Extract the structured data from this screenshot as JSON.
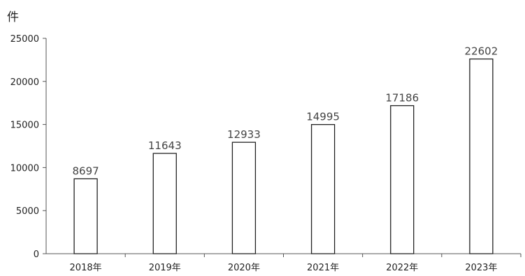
{
  "chart_data": {
    "type": "bar",
    "title": "",
    "xlabel": "",
    "ylabel": "件",
    "categories": [
      "2018年",
      "2019年",
      "2020年",
      "2021年",
      "2022年",
      "2023年"
    ],
    "values": [
      8697,
      11643,
      12933,
      14995,
      17186,
      22602
    ],
    "data_labels": [
      "8697",
      "11643",
      "12933",
      "14995",
      "17186",
      "22602"
    ],
    "ylim": [
      0,
      25000
    ],
    "yticks": [
      0,
      5000,
      10000,
      15000,
      20000,
      25000
    ],
    "ytick_labels": [
      "0",
      "5000",
      "10000",
      "15000",
      "20000",
      "25000"
    ],
    "grid": false,
    "legend": "none",
    "bar_fill": "#ffffff",
    "bar_stroke": "#222222"
  }
}
